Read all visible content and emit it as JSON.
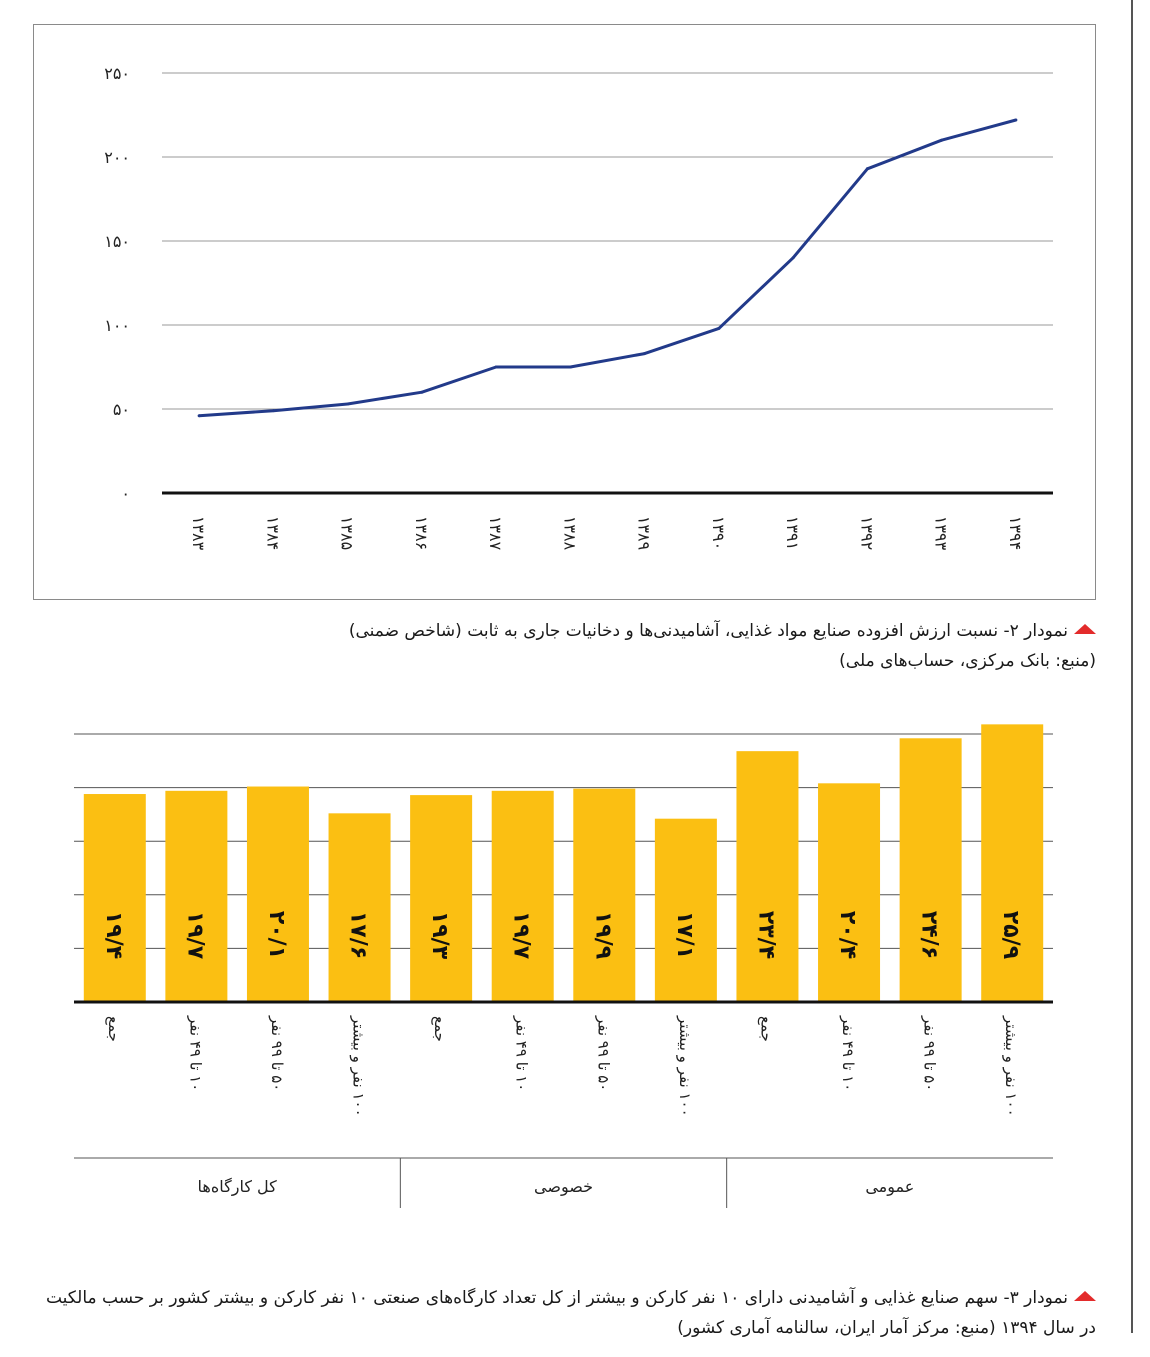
{
  "chart_data": [
    {
      "type": "line",
      "x": [
        "۱۳۸۳",
        "۱۳۸۴",
        "۱۳۸۵",
        "۱۳۸۶",
        "۱۳۸۷",
        "۱۳۸۸",
        "۱۳۸۹",
        "۱۳۹۰",
        "۱۳۹۱",
        "۱۳۹۲",
        "۱۳۹۳",
        "۱۳۹۴"
      ],
      "series": [
        {
          "values": [
            46,
            49,
            53,
            60,
            75,
            75,
            83,
            98,
            140,
            193,
            210,
            222
          ]
        }
      ],
      "ylim": [
        0,
        250
      ],
      "yticks": [
        0,
        50,
        100,
        150,
        200,
        250
      ],
      "ytick_labels": [
        "۰",
        "۵۰",
        "۱۰۰",
        "۱۵۰",
        "۲۰۰",
        "۲۵۰"
      ],
      "grid": true,
      "line_color": "#223a8a"
    },
    {
      "type": "bar",
      "categories": [
        "جمع",
        "۱۰ تا ۴۹ نفر",
        "۵۰ تا ۹۹ نفر",
        "۱۰۰ نفر و بیشتر",
        "جمع",
        "۱۰ تا ۴۹ نفر",
        "۵۰ تا ۹۹ نفر",
        "۱۰۰ نفر و بیشتر",
        "جمع",
        "۱۰ تا ۴۹ نفر",
        "۵۰ تا ۹۹ نفر",
        "۱۰۰ نفر و بیشتر"
      ],
      "values": [
        19.4,
        19.7,
        20.1,
        17.6,
        19.3,
        19.7,
        19.9,
        17.1,
        23.4,
        20.4,
        24.6,
        25.9
      ],
      "value_labels": [
        "۱۹/۴",
        "۱۹/۷",
        "۲۰/۱",
        "۱۷/۶",
        "۱۹/۳",
        "۱۹/۷",
        "۱۹/۹",
        "۱۷/۱",
        "۲۳/۴",
        "۲۰/۴",
        "۲۴/۶",
        "۲۵/۹"
      ],
      "groups": [
        {
          "label": "کل کارگاه‌ها",
          "count": 4
        },
        {
          "label": "خصوصی",
          "count": 4
        },
        {
          "label": "عمومی",
          "count": 4
        }
      ],
      "ylim": [
        0,
        25
      ],
      "grid": true,
      "bar_color": "#fbbf12"
    }
  ],
  "captions": {
    "chart2_title": "نمودار ۲- نسبت ارزش افزوده صنایع مواد غذایی، آشامیدنی‌ها و دخانیات جاری به ثابت (شاخص ضمنی)",
    "chart2_source": "(منبع: بانک مرکزی، حساب‌های ملی)",
    "chart3_title": "نمودار ۳- سهم صنایع غذایی و آشامیدنی دارای ۱۰ نفر کارکن و بیشتر از کل تعداد کارگاه‌های صنعتی ۱۰ نفر کارکن و بیشتر کشور بر حسب مالکیت در سال ۱۳۹۴ (منبع: مرکز آمار ایران، سالنامه آماری کشور)"
  },
  "colors": {
    "marker": "#e32b2b",
    "line": "#223a8a",
    "bar": "#fbbf12"
  }
}
